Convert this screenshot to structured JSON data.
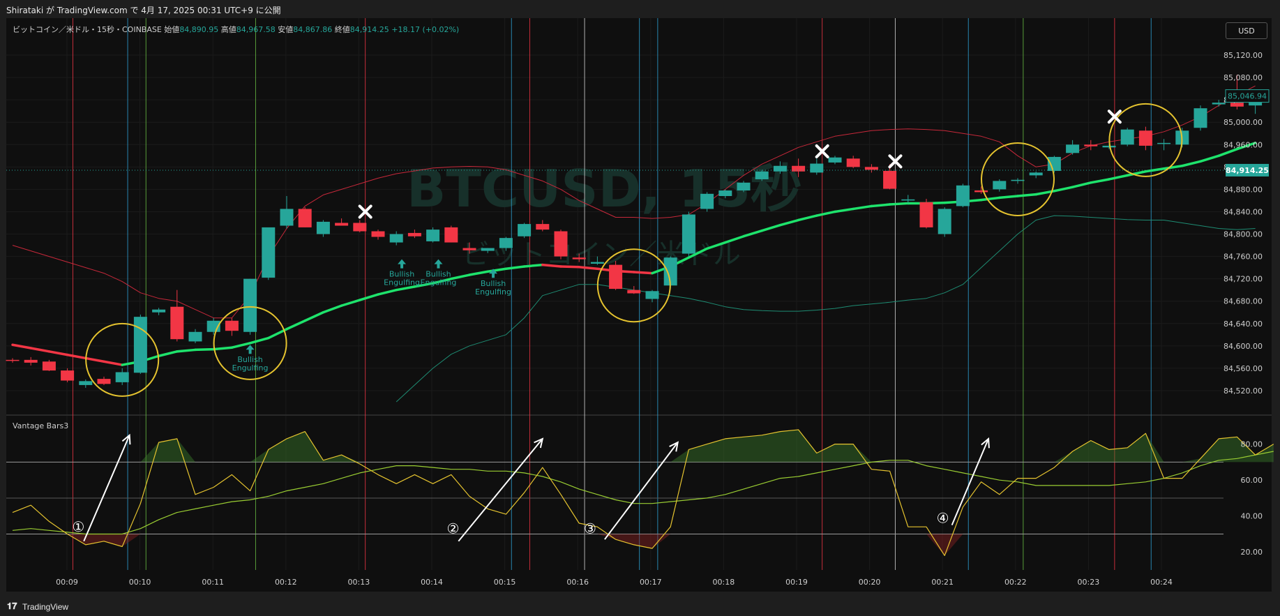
{
  "header": {
    "attribution": "Shirataki が TradingView.com で 4月 17, 2025 00:31 UTC+9 に公開"
  },
  "legend": {
    "symbol": "ビットコイン／米ドル・15秒・COINBASE",
    "open_label": "始値",
    "open": "84,890.95",
    "high_label": "高値",
    "high": "84,967.58",
    "low_label": "安値",
    "low": "84,867.86",
    "close_label": "終値",
    "close": "84,914.25",
    "change": "+18.17 (+0.02%)"
  },
  "currency_button": "USD",
  "watermark": {
    "title": "BTCUSD, 15秒",
    "subtitle": "ビットコイン／米ドル"
  },
  "indicator_name": "Vantage Bars3",
  "footer": {
    "brand": "TradingView"
  },
  "colors": {
    "up": "#26a69a",
    "down": "#f23645",
    "bg": "#0f0f0f",
    "ma_up": "#1ee36c",
    "ma_down": "#f23645",
    "osc": "#e5c32f",
    "osc_signal": "#9acd32",
    "circle": "#e5c32f"
  },
  "chart_data": [
    {
      "type": "candlestick",
      "ylim": [
        84480,
        85150
      ],
      "y_ticks": [
        "85,120.00",
        "85,080.00",
        "85,040.00",
        "85,000.00",
        "84,960.00",
        "84,920.00",
        "84,880.00",
        "84,840.00",
        "84,800.00",
        "84,760.00",
        "84,720.00",
        "84,680.00",
        "84,640.00",
        "84,600.00",
        "84,560.00",
        "84,520.00"
      ],
      "x_ticks": [
        "00:09",
        "00:10",
        "00:11",
        "00:12",
        "00:13",
        "00:14",
        "00:15",
        "00:16",
        "00:17",
        "00:18",
        "00:19",
        "00:20",
        "00:21",
        "00:22",
        "00:23",
        "00:24"
      ],
      "price_labels": {
        "last": "85,046.94",
        "current": "84,914.25"
      },
      "candles": [
        [
          84575,
          84578,
          84570,
          84574
        ],
        [
          84575,
          84580,
          84565,
          84570
        ],
        [
          84572,
          84575,
          84555,
          84556
        ],
        [
          84556,
          84560,
          84535,
          84538
        ],
        [
          84530,
          84540,
          84525,
          84537
        ],
        [
          84541,
          84545,
          84530,
          84532
        ],
        [
          84535,
          84560,
          84530,
          84553
        ],
        [
          84552,
          84656,
          84550,
          84652
        ],
        [
          84660,
          84668,
          84655,
          84665
        ],
        [
          84670,
          84700,
          84608,
          84612
        ],
        [
          84608,
          84630,
          84605,
          84625
        ],
        [
          84625,
          84650,
          84620,
          84645
        ],
        [
          84645,
          84650,
          84618,
          84627
        ],
        [
          84625,
          84720,
          84620,
          84720
        ],
        [
          84722,
          84810,
          84718,
          84812
        ],
        [
          84815,
          84868,
          84810,
          84845
        ],
        [
          84845,
          84848,
          84812,
          84812
        ],
        [
          84800,
          84825,
          84795,
          84822
        ],
        [
          84820,
          84828,
          84815,
          84815
        ],
        [
          84820,
          84825,
          84803,
          84805
        ],
        [
          84805,
          84808,
          84790,
          84795
        ],
        [
          84785,
          84805,
          84780,
          84800
        ],
        [
          84802,
          84808,
          84793,
          84796
        ],
        [
          84787,
          84812,
          84785,
          84808
        ],
        [
          84812,
          84815,
          84785,
          84785
        ],
        [
          84775,
          84785,
          84765,
          84771
        ],
        [
          84770,
          84775,
          84766,
          84775
        ],
        [
          84775,
          84795,
          84770,
          84793
        ],
        [
          84796,
          84820,
          84793,
          84818
        ],
        [
          84818,
          84825,
          84805,
          84808
        ],
        [
          84805,
          84808,
          84755,
          84760
        ],
        [
          84758,
          84765,
          84750,
          84755
        ],
        [
          84747,
          84760,
          84745,
          84750
        ],
        [
          84745,
          84752,
          84700,
          84702
        ],
        [
          84700,
          84707,
          84693,
          84694
        ],
        [
          84684,
          84700,
          84678,
          84698
        ],
        [
          84708,
          84760,
          84703,
          84758
        ],
        [
          84765,
          84840,
          84760,
          84835
        ],
        [
          84845,
          84875,
          84840,
          84872
        ],
        [
          84868,
          84880,
          84864,
          84878
        ],
        [
          84878,
          84895,
          84875,
          84892
        ],
        [
          84898,
          84915,
          84895,
          84912
        ],
        [
          84912,
          84930,
          84908,
          84922
        ],
        [
          84922,
          84935,
          84902,
          84912
        ],
        [
          84910,
          84935,
          84906,
          84926
        ],
        [
          84928,
          84940,
          84925,
          84937
        ],
        [
          84935,
          84940,
          84918,
          84920
        ],
        [
          84920,
          84925,
          84910,
          84915
        ],
        [
          84913,
          84925,
          84880,
          84881
        ],
        [
          84860,
          84870,
          84855,
          84862
        ],
        [
          84857,
          84863,
          84810,
          84812
        ],
        [
          84800,
          84848,
          84795,
          84845
        ],
        [
          84850,
          84890,
          84848,
          84887
        ],
        [
          84878,
          84885,
          84872,
          84875
        ],
        [
          84880,
          84898,
          84876,
          84895
        ],
        [
          84895,
          84900,
          84890,
          84897
        ],
        [
          84905,
          84912,
          84900,
          84910
        ],
        [
          84913,
          84940,
          84910,
          84938
        ],
        [
          84945,
          84968,
          84942,
          84960
        ],
        [
          84960,
          84968,
          84950,
          84957
        ],
        [
          84955,
          84970,
          84952,
          84958
        ],
        [
          84960,
          84990,
          84957,
          84987
        ],
        [
          84985,
          84992,
          84950,
          84958
        ],
        [
          84962,
          84970,
          84950,
          84963
        ],
        [
          84960,
          84990,
          84955,
          84985
        ],
        [
          84990,
          85030,
          84985,
          85025
        ],
        [
          85032,
          85040,
          85028,
          85035
        ],
        [
          85035,
          85085,
          85023,
          85028
        ],
        [
          85030,
          85050,
          85015,
          85045
        ]
      ],
      "ma": [
        84602,
        84596,
        84590,
        84584,
        84578,
        84572,
        84566,
        84572,
        84582,
        84590,
        84593,
        84594,
        84597,
        84605,
        84614,
        84630,
        84645,
        84660,
        84672,
        84682,
        84692,
        84700,
        84706,
        84712,
        84720,
        84727,
        84733,
        84738,
        84742,
        84745,
        84742,
        84741,
        84738,
        84734,
        84732,
        84730,
        84742,
        84758,
        84774,
        84785,
        84796,
        84806,
        84816,
        84825,
        84833,
        84840,
        84845,
        84850,
        84853,
        84855,
        84855,
        84856,
        84858,
        84861,
        84865,
        84868,
        84871,
        84877,
        84884,
        84892,
        84898,
        84905,
        84912,
        84917,
        84922,
        84930,
        84940,
        84952,
        84963
      ],
      "upper_band": [
        84780,
        84770,
        84760,
        84750,
        84740,
        84730,
        84715,
        84695,
        84685,
        84680,
        84665,
        84650,
        84650,
        84690,
        84760,
        84810,
        84850,
        84870,
        84880,
        84890,
        84900,
        84908,
        84913,
        84918,
        84920,
        84921,
        84920,
        84915,
        84905,
        84895,
        84880,
        84860,
        84845,
        84830,
        84830,
        84828,
        84830,
        84835,
        84855,
        84880,
        84905,
        84925,
        84940,
        84955,
        84965,
        84975,
        84980,
        84985,
        84987,
        84988,
        84987,
        84985,
        84980,
        84975,
        84965,
        84940,
        84920,
        84925,
        84945,
        84958,
        84965,
        84970,
        84975,
        84983,
        84995,
        85010,
        85030,
        85048,
        85065
      ],
      "lower_band": [
        null,
        null,
        null,
        null,
        null,
        null,
        null,
        null,
        null,
        null,
        null,
        null,
        null,
        null,
        null,
        null,
        null,
        null,
        null,
        null,
        null,
        84500,
        84530,
        84560,
        84585,
        84600,
        84610,
        84620,
        84650,
        84690,
        84700,
        84710,
        84710,
        84705,
        84700,
        84695,
        84690,
        84685,
        84678,
        84670,
        84665,
        84663,
        84662,
        84662,
        84664,
        84667,
        84672,
        84675,
        84678,
        84682,
        84685,
        84695,
        84710,
        84740,
        84770,
        84800,
        84825,
        84833,
        84832,
        84830,
        84828,
        84826,
        84825,
        84825,
        84820,
        84815,
        84810,
        84808,
        84810
      ],
      "vlines": [
        {
          "x": 3.3,
          "color": "#f23645"
        },
        {
          "x": 6.3,
          "color": "#2ea3d6"
        },
        {
          "x": 7.3,
          "color": "#6abf45"
        },
        {
          "x": 13.3,
          "color": "#6abf45"
        },
        {
          "x": 19.3,
          "color": "#f23645"
        },
        {
          "x": 27.3,
          "color": "#2ea3d6"
        },
        {
          "x": 28.3,
          "color": "#f23645"
        },
        {
          "x": 31.3,
          "color": "#d8d8d8"
        },
        {
          "x": 34.3,
          "color": "#2ea3d6"
        },
        {
          "x": 35.3,
          "color": "#2ea3d6"
        },
        {
          "x": 44.3,
          "color": "#f23645"
        },
        {
          "x": 48.3,
          "color": "#d8d8d8"
        },
        {
          "x": 52.3,
          "color": "#2ea3d6"
        },
        {
          "x": 55.3,
          "color": "#6abf45"
        },
        {
          "x": 60.3,
          "color": "#f23645"
        },
        {
          "x": 62.3,
          "color": "#2ea3d6"
        }
      ],
      "circles": [
        {
          "i": 6,
          "p": 84575
        },
        {
          "i": 13,
          "p": 84605
        },
        {
          "i": 34,
          "p": 84708
        },
        {
          "i": 55,
          "p": 84898
        },
        {
          "i": 62,
          "p": 84968
        }
      ],
      "x_marks": [
        {
          "i": 19.3,
          "p": 84840
        },
        {
          "i": 44.3,
          "p": 84948
        },
        {
          "i": 48.3,
          "p": 84930
        },
        {
          "i": 60.3,
          "p": 85010
        }
      ],
      "patterns": [
        {
          "i": 13,
          "p": 84602,
          "line1": "Bullish",
          "line2": "Engulfing"
        },
        {
          "i": 21.3,
          "p": 84755,
          "line1": "Bullish",
          "line2": "Engulfing"
        },
        {
          "i": 23.3,
          "p": 84755,
          "line1": "Bullish",
          "line2": "Engulfing"
        },
        {
          "i": 26.3,
          "p": 84738,
          "line1": "Bullish",
          "line2": "Engulfing"
        }
      ]
    },
    {
      "type": "line",
      "name": "Vantage Bars3",
      "ylim": [
        10,
        95
      ],
      "y_ticks": [
        "80.00",
        "60.00",
        "40.00",
        "20.00"
      ],
      "hlines": [
        70,
        50,
        30
      ],
      "osc": [
        42,
        46,
        37,
        30,
        24,
        26,
        23,
        47,
        81,
        83,
        52,
        56,
        63,
        54,
        77,
        83,
        87,
        71,
        74,
        69,
        63,
        58,
        63,
        58,
        63,
        51,
        44,
        41,
        53,
        67,
        52,
        36,
        34,
        27,
        24,
        22,
        34,
        77,
        80,
        83,
        84,
        85,
        87,
        88,
        75,
        80,
        80,
        66,
        65,
        34,
        34,
        18,
        45,
        59,
        52,
        61,
        61,
        67,
        76,
        82,
        77,
        78,
        86,
        61,
        61,
        72,
        83,
        84,
        74,
        80
      ],
      "signal": [
        32,
        33,
        32,
        31,
        30,
        30,
        30,
        33,
        38,
        42,
        44,
        46,
        48,
        49,
        51,
        54,
        56,
        58,
        61,
        64,
        66,
        68,
        68,
        67,
        66,
        66,
        65,
        65,
        64,
        62,
        59,
        55,
        52,
        49,
        47,
        47,
        48,
        49,
        50,
        52,
        55,
        58,
        61,
        62,
        64,
        66,
        68,
        70,
        71,
        71,
        68,
        66,
        64,
        62,
        60,
        59,
        57,
        57,
        57,
        57,
        57,
        58,
        59,
        61,
        64,
        68,
        71,
        72,
        74,
        76
      ],
      "arrows": [
        {
          "x1": 3.9,
          "y1": 26,
          "x2": 6.4,
          "y2": 85
        },
        {
          "x1": 24.4,
          "y1": 26,
          "x2": 29.0,
          "y2": 83
        },
        {
          "x1": 32.4,
          "y1": 27,
          "x2": 36.4,
          "y2": 81
        },
        {
          "x1": 51.4,
          "y1": 35,
          "x2": 53.4,
          "y2": 83
        }
      ],
      "arrow_labels": [
        {
          "x": 3.6,
          "y": 34,
          "text": "①"
        },
        {
          "x": 24.1,
          "y": 33,
          "text": "②"
        },
        {
          "x": 31.6,
          "y": 33,
          "text": "③"
        },
        {
          "x": 50.9,
          "y": 39,
          "text": "④"
        }
      ]
    }
  ]
}
